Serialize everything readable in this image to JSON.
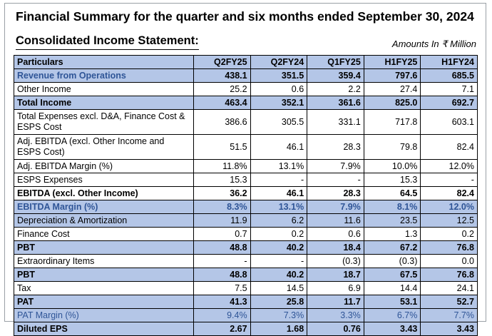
{
  "header": {
    "title": "Financial Summary for the quarter and six months ended September 30, 2024",
    "subtitle": "Consolidated Income Statement:",
    "units": "Amounts In ₹ Million"
  },
  "table": {
    "columns": [
      "Particulars",
      "Q2FY25",
      "Q2FY24",
      "Q1FY25",
      "H1FY25",
      "H1FY24"
    ],
    "rows": [
      {
        "label": "Revenue from Operations",
        "values": [
          "438.1",
          "351.5",
          "359.4",
          "797.6",
          "685.5"
        ]
      },
      {
        "label": "Other Income",
        "values": [
          "25.2",
          "0.6",
          "2.2",
          "27.4",
          "7.1"
        ]
      },
      {
        "label": "Total Income",
        "values": [
          "463.4",
          "352.1",
          "361.6",
          "825.0",
          "692.7"
        ]
      },
      {
        "label": "Total Expenses excl. D&A, Finance Cost & ESPS Cost",
        "values": [
          "386.6",
          "305.5",
          "331.1",
          "717.8",
          "603.1"
        ]
      },
      {
        "label": "Adj. EBITDA (excl. Other Income and ESPS Cost)",
        "values": [
          "51.5",
          "46.1",
          "28.3",
          "79.8",
          "82.4"
        ]
      },
      {
        "label": "Adj. EBITDA Margin (%)",
        "values": [
          "11.8%",
          "13.1%",
          "7.9%",
          "10.0%",
          "12.0%"
        ]
      },
      {
        "label": "ESPS Expenses",
        "values": [
          "15.3",
          "-",
          "-",
          "15.3",
          "-"
        ]
      },
      {
        "label": "EBITDA (excl. Other Income)",
        "values": [
          "36.2",
          "46.1",
          "28.3",
          "64.5",
          "82.4"
        ]
      },
      {
        "label": "EBITDA Margin (%)",
        "values": [
          "8.3%",
          "13.1%",
          "7.9%",
          "8.1%",
          "12.0%"
        ]
      },
      {
        "label": "Depreciation & Amortization",
        "values": [
          "11.9",
          "6.2",
          "11.6",
          "23.5",
          "12.5"
        ]
      },
      {
        "label": "Finance Cost",
        "values": [
          "0.7",
          "0.2",
          "0.6",
          "1.3",
          "0.2"
        ]
      },
      {
        "label": "PBT",
        "values": [
          "48.8",
          "40.2",
          "18.4",
          "67.2",
          "76.8"
        ]
      },
      {
        "label": "Extraordinary Items",
        "values": [
          "-",
          "-",
          "(0.3)",
          "(0.3)",
          "0.0"
        ]
      },
      {
        "label": "PBT",
        "values": [
          "48.8",
          "40.2",
          "18.7",
          "67.5",
          "76.8"
        ]
      },
      {
        "label": "Tax",
        "values": [
          "7.5",
          "14.5",
          "6.9",
          "14.4",
          "24.1"
        ]
      },
      {
        "label": "PAT",
        "values": [
          "41.3",
          "25.8",
          "11.7",
          "53.1",
          "52.7"
        ]
      },
      {
        "label": "PAT Margin (%)",
        "values": [
          "9.4%",
          "7.3%",
          "3.3%",
          "6.7%",
          "7.7%"
        ]
      },
      {
        "label": "Diluted EPS",
        "values": [
          "2.67",
          "1.68",
          "0.76",
          "3.43",
          "3.43"
        ]
      }
    ]
  },
  "colors": {
    "header_fill": "#b4c6e7",
    "shaded_row_fill": "#b4c6e7",
    "margin_text": "#2f5597"
  }
}
